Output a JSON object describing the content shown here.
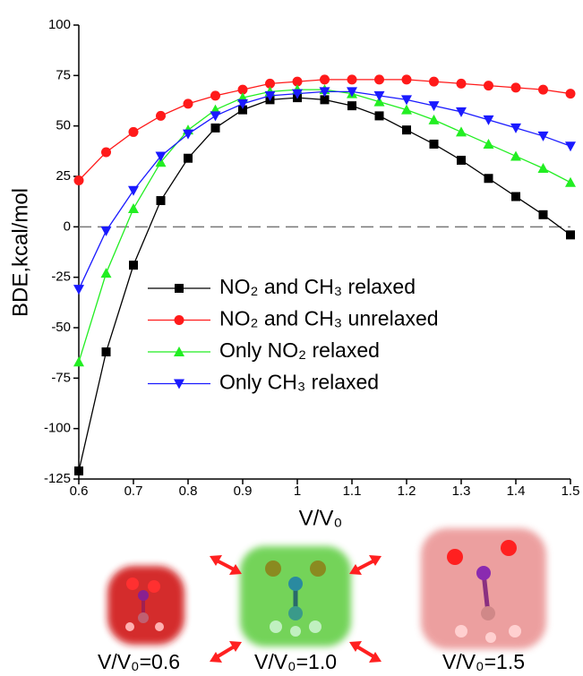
{
  "chart_data": {
    "type": "line",
    "y_label": "BDE,kcal/mol",
    "x_label": "V/V₀",
    "x": [
      0.6,
      0.65,
      0.7,
      0.75,
      0.8,
      0.85,
      0.9,
      0.95,
      1.0,
      1.05,
      1.1,
      1.15,
      1.2,
      1.25,
      1.3,
      1.35,
      1.4,
      1.45,
      1.5
    ],
    "series": [
      {
        "name": "NO₂ and CH₃ relaxed",
        "color": "#000000",
        "marker": "square",
        "values": [
          -121,
          -62,
          -19,
          13,
          34,
          49,
          58,
          63,
          64,
          63,
          60,
          55,
          48,
          41,
          33,
          24,
          15,
          6,
          -4
        ]
      },
      {
        "name": "NO₂ and CH₃ unrelaxed",
        "color": "#ff1a1a",
        "marker": "circle",
        "values": [
          23,
          37,
          47,
          55,
          61,
          65,
          68,
          71,
          72,
          73,
          73,
          73,
          73,
          72,
          71,
          70,
          69,
          68,
          66
        ]
      },
      {
        "name": "Only NO₂ relaxed",
        "color": "#22ee22",
        "marker": "triangle-up",
        "values": [
          -67,
          -23,
          9,
          32,
          48,
          58,
          64,
          67,
          68,
          68,
          66,
          62,
          58,
          53,
          47,
          41,
          35,
          29,
          22
        ]
      },
      {
        "name": "Only CH₃ relaxed",
        "color": "#1a1aff",
        "marker": "triangle-down",
        "values": [
          -31,
          -2,
          18,
          35,
          46,
          55,
          61,
          65,
          66,
          67,
          67,
          65,
          63,
          60,
          57,
          53,
          49,
          45,
          40
        ]
      }
    ],
    "xlim": [
      0.6,
      1.5
    ],
    "xticks": [
      0.6,
      0.7,
      0.8,
      0.9,
      1.0,
      1.1,
      1.2,
      1.3,
      1.4,
      1.5
    ],
    "ylim": [
      -125,
      100
    ],
    "yticks": [
      100,
      75,
      50,
      25,
      0,
      -25,
      -50,
      -75,
      -100,
      -125
    ],
    "reference_line": 0,
    "legend": "center"
  },
  "panels": [
    {
      "caption": "V/V₀=0.6"
    },
    {
      "caption": "V/V₀=1.0"
    },
    {
      "caption": "V/V₀=1.5"
    }
  ]
}
